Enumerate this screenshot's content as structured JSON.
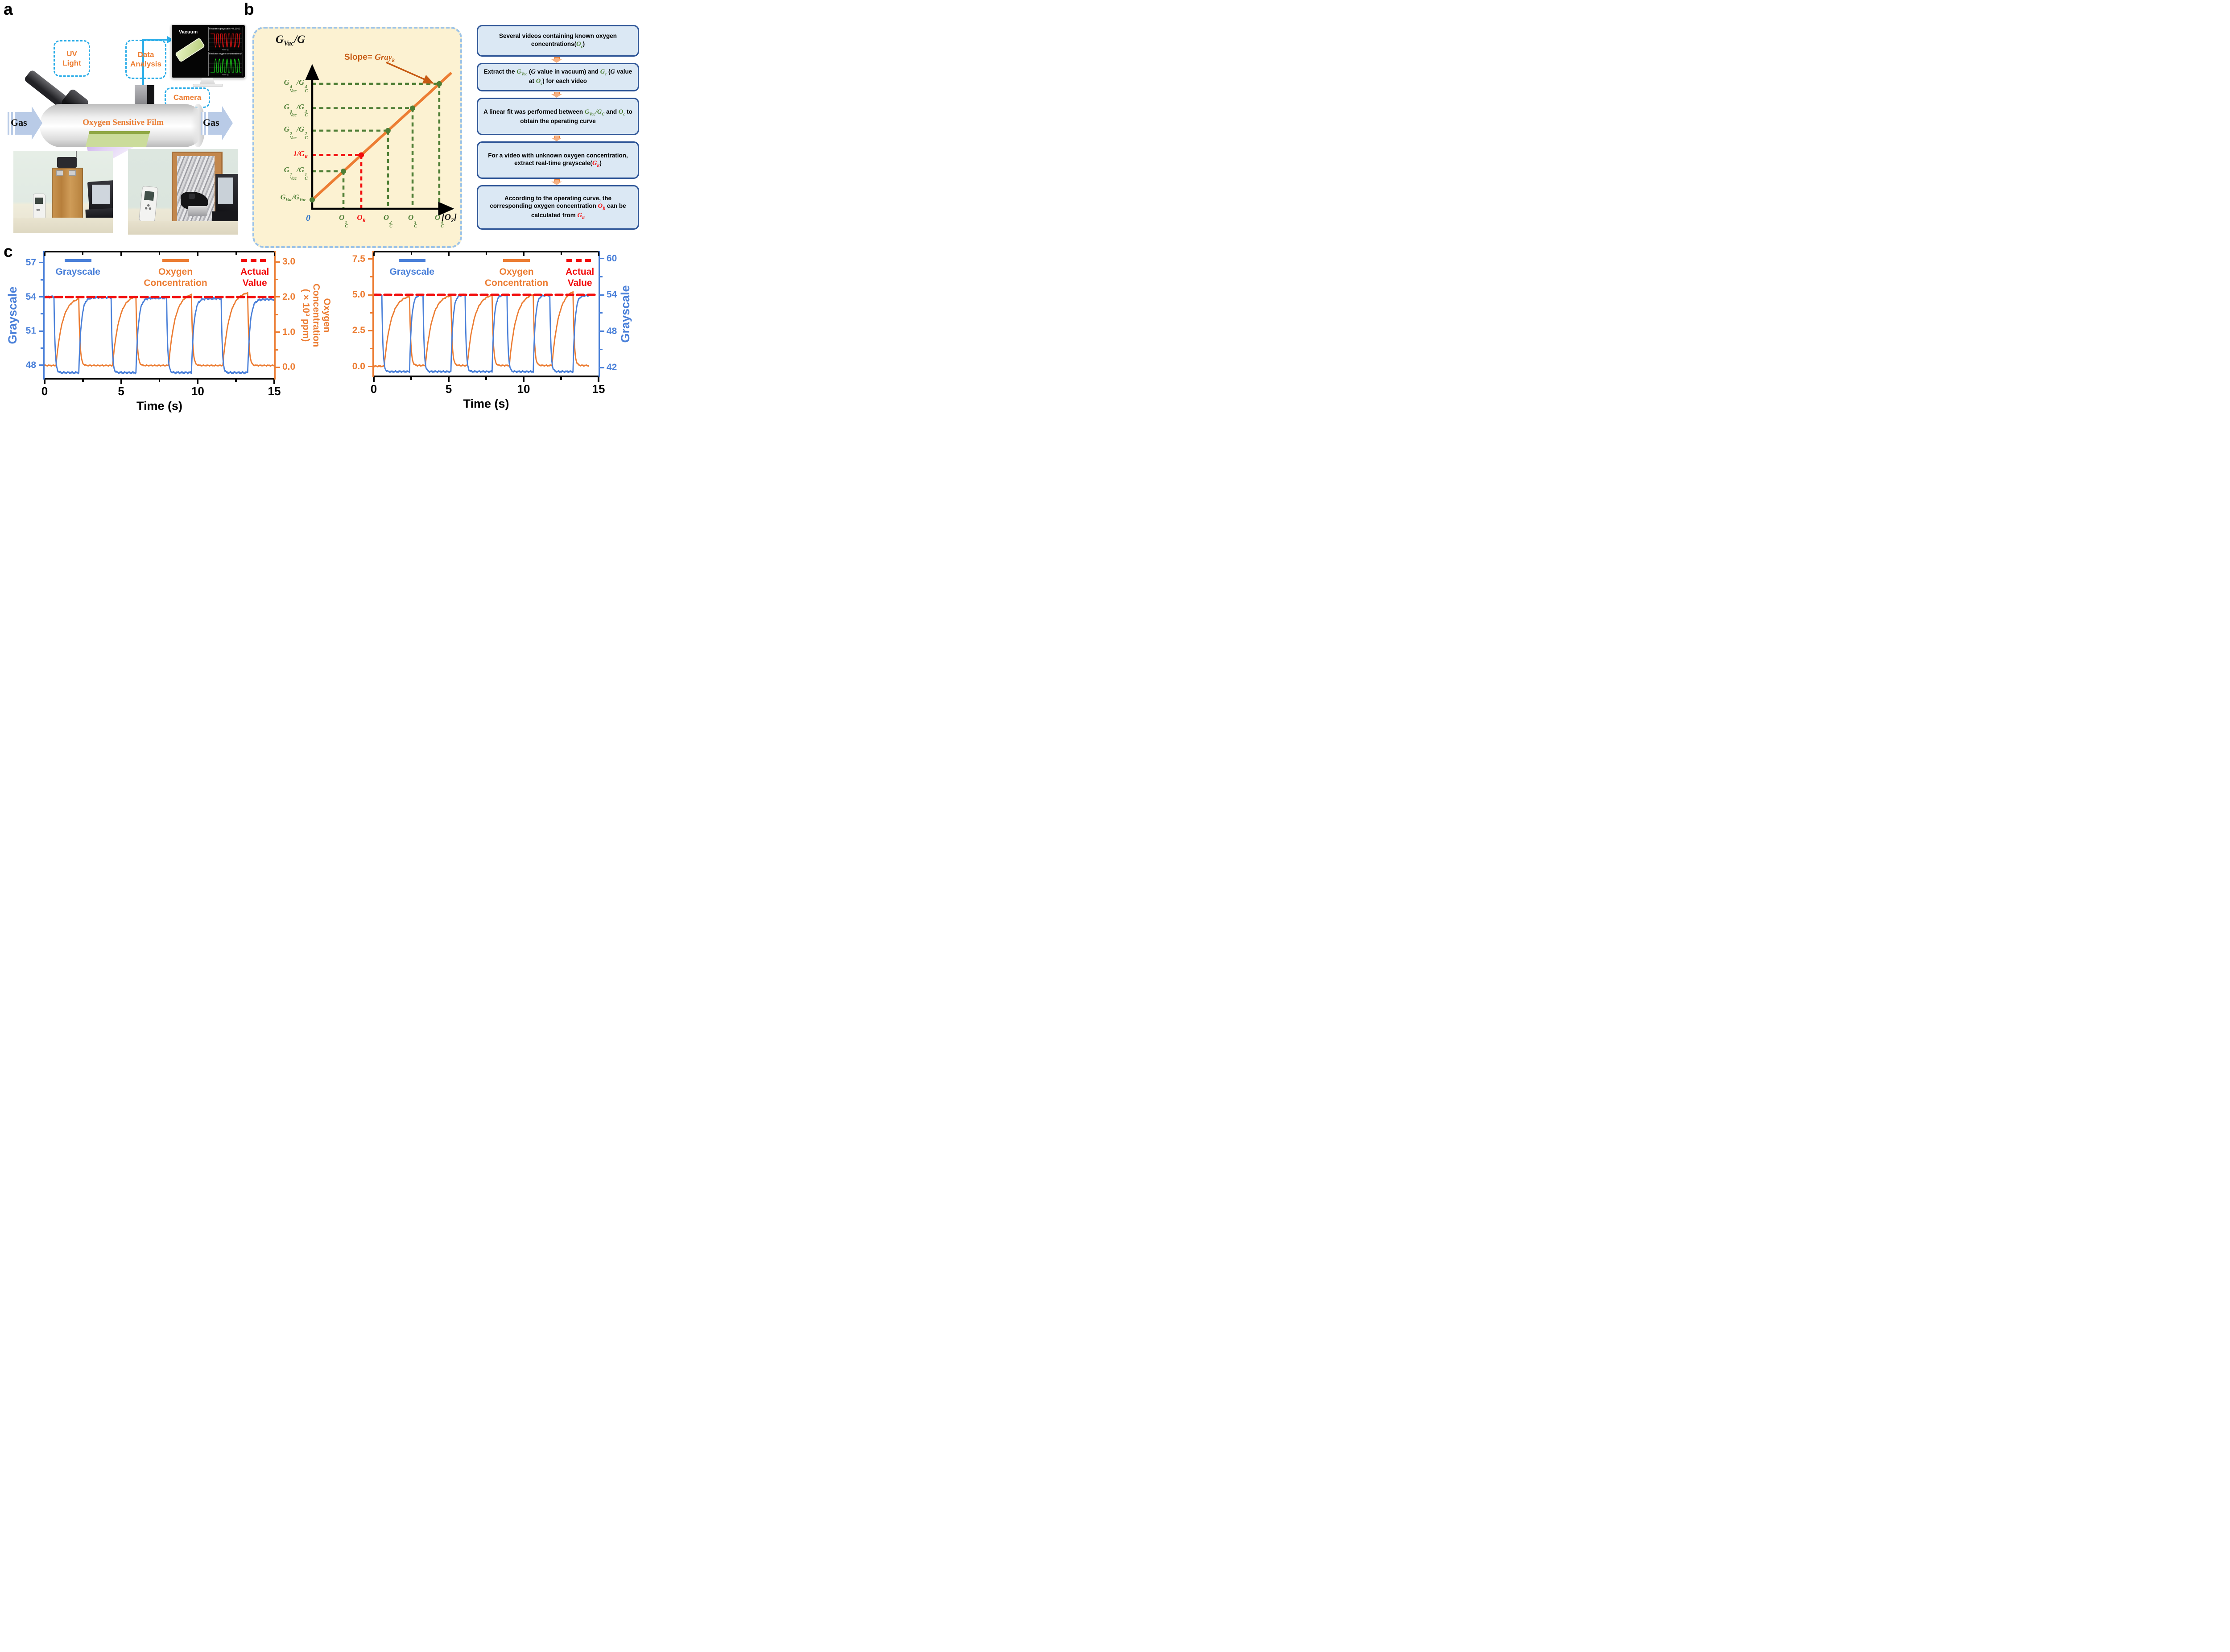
{
  "colors": {
    "blue": "#4a80d9",
    "orange": "#ec7d33",
    "red": "#f20d0d",
    "green": "#4e7e35",
    "slope_orange": "#c65911",
    "box_border": "#2e5597",
    "box_fill": "#dbe8f4",
    "beige": "#fcf2d2",
    "panel_dash": "#9cc3e8",
    "cyan_dash": "#2bade8",
    "gas_fill": "#b9cbe7"
  },
  "panel_a": {
    "letter": "a",
    "uv_light": [
      "UV",
      "Light"
    ],
    "data_analysis": [
      "Data",
      "Analysis"
    ],
    "camera_label": "Camera",
    "gas_left": "Gas",
    "gas_right": "Gas",
    "film_label": "Oxygen Sensitive Film",
    "monitor": {
      "screen_label": "Vacuum",
      "plot1_title": "Realtime grayscale: 47.1952",
      "plot2_title": "Realtime oxygen concentration (%): 0.0044543",
      "plot_xlabel": "Time (s)",
      "plot1_color": "#e01212",
      "plot2_color": "#17c417"
    }
  },
  "panel_b": {
    "letter": "b",
    "axis_title": "G_{Vac}/G",
    "slope_prefix": "Slope= ",
    "slope_math": "Gray_{k}",
    "x_axis_symbol": "[O_{2}]",
    "origin_label": "0",
    "origin_point_label": "G_{Vac}/G_{Vac}",
    "points": [
      {
        "f": 0.226,
        "ylabel": "G^{1}_{Vac}/G^{1}_{C}",
        "xlabel": "O^{1}_{C}",
        "color": "#4e7e35"
      },
      {
        "f": 0.355,
        "ylabel": "1/G_{R}",
        "xlabel": "O_{R}",
        "color": "#f20d0d"
      },
      {
        "f": 0.548,
        "ylabel": "G^{2}_{Vac}/G^{2}_{C}",
        "xlabel": "O^{2}_{C}",
        "color": "#4e7e35"
      },
      {
        "f": 0.726,
        "ylabel": "G^{3}_{Vac}/G^{3}_{C}",
        "xlabel": "O^{3}_{C}",
        "color": "#4e7e35"
      },
      {
        "f": 0.919,
        "ylabel": "G^{4}_{Vac}/G^{4}_{C}",
        "xlabel": "O^{4}_{C}",
        "color": "#4e7e35"
      }
    ],
    "flowchart": [
      {
        "seg": [
          {
            "t": "Several videos containing known oxygen concentrations("
          },
          {
            "m": "O_{c}",
            "c": "#4e7e35"
          },
          {
            "t": ")"
          }
        ]
      },
      {
        "seg": [
          {
            "t": "Extract the "
          },
          {
            "m": "G_{Vac}",
            "c": "#4e7e35"
          },
          {
            "t": " ("
          },
          {
            "m": "G",
            "c": "#000"
          },
          {
            "t": " value in vacuum) and "
          },
          {
            "m": "G_{c}",
            "c": "#4e7e35"
          },
          {
            "t": " ("
          },
          {
            "m": "G",
            "c": "#000"
          },
          {
            "t": " value at "
          },
          {
            "m": "O_{c}",
            "c": "#4e7e35"
          },
          {
            "t": ") for each video"
          }
        ]
      },
      {
        "seg": [
          {
            "t": "A linear fit was performed between "
          },
          {
            "m": "G_{Vac}/G_{C}",
            "c": "#4e7e35"
          },
          {
            "t": " and "
          },
          {
            "m": "O_{c}",
            "c": "#4e7e35"
          },
          {
            "t": " to obtain the operating curve"
          }
        ]
      },
      {
        "seg": [
          {
            "t": "For a video with unknown oxygen concentration, extract real-time grayscale("
          },
          {
            "m": "G_{R}",
            "c": "#f20d0d"
          },
          {
            "t": ")"
          }
        ]
      },
      {
        "seg": [
          {
            "t": "According to the operating curve, the corresponding oxygen concentration "
          },
          {
            "m": "O_{R}",
            "c": "#f20d0d"
          },
          {
            "t": " can be calculated from "
          },
          {
            "m": "G_{R}",
            "c": "#f20d0d"
          }
        ]
      }
    ]
  },
  "panel_c": {
    "letter": "c"
  },
  "chart_data": [
    {
      "type": "line",
      "position": "left",
      "xlabel": "Time (s)",
      "x_range": [
        0,
        15
      ],
      "x_ticks": [
        0,
        5,
        10,
        15
      ],
      "x_minor": [
        2.5,
        7.5,
        12.5
      ],
      "left_axis": {
        "label_lines": [
          "Grayscale"
        ],
        "color": "#4a80d9",
        "range": [
          46.9,
          57.9
        ],
        "ticks": [
          48,
          51,
          54,
          57
        ],
        "minor": [
          49.5,
          52.5,
          55.5
        ],
        "decimals": 0,
        "label_rotation": -90
      },
      "right_axis": {
        "label_lines": [
          "Oxygen",
          "Concentration",
          "( × 10³ ppm)"
        ],
        "color": "#ec7d33",
        "range": [
          -0.3,
          3.27
        ],
        "ticks": [
          0,
          1,
          2,
          3
        ],
        "minor": [
          0.5,
          1.5,
          2.5
        ],
        "decimals": 1,
        "label_rotation": 90
      },
      "reference": {
        "value": 2.0,
        "axis": "right",
        "color": "#f20d0d",
        "label": "Actual Value"
      },
      "legend": [
        {
          "lines": [
            "Grayscale"
          ],
          "color": "#4a80d9",
          "style": "solid",
          "cx": 0.145
        },
        {
          "lines": [
            "Oxygen",
            "Concentration"
          ],
          "color": "#ec7d33",
          "style": "solid",
          "cx": 0.57
        },
        {
          "lines": [
            "Actual",
            "Value"
          ],
          "color": "#f20d0d",
          "style": "dashed",
          "cx": 0.915
        }
      ],
      "t_end": 15,
      "sample_dt": 0.012,
      "series": [
        {
          "name": "Grayscale",
          "axis": "left",
          "color": "#4a80d9",
          "start_value": 54.0,
          "high": 54.0,
          "low": 47.35,
          "drops": [
            0.62,
            4.35,
            7.97,
            11.54
          ],
          "rises": [
            2.24,
            5.97,
            9.59,
            13.27
          ],
          "rise_values": [
            53.95,
            53.9,
            53.85,
            53.78
          ],
          "fall_tau": 0.07,
          "rise_tau": 0.16,
          "noise": 0.1,
          "seed": 3
        },
        {
          "name": "Oxygen Concentration",
          "axis": "right",
          "color": "#ec7d33",
          "start_value": 0.05,
          "high": 2.0,
          "low": 0.05,
          "rises": [
            0.75,
            4.45,
            8.1,
            11.65
          ],
          "falls": [
            2.24,
            5.97,
            9.59,
            13.27
          ],
          "rise_values": [
            2.0,
            2.07,
            2.13,
            2.16
          ],
          "rise_tau": 0.42,
          "fall_tau": 0.08,
          "noise": 0.018,
          "seed": 7
        }
      ]
    },
    {
      "type": "line",
      "position": "right",
      "xlabel": "Time (s)",
      "x_range": [
        0,
        15
      ],
      "x_ticks": [
        0,
        5,
        10,
        15
      ],
      "x_minor": [
        2.5,
        7.5,
        12.5
      ],
      "left_axis": {
        "label_lines": [],
        "color": "#ec7d33",
        "range": [
          -0.63,
          7.96
        ],
        "ticks": [
          0,
          2.5,
          5,
          7.5
        ],
        "minor": [
          1.25,
          3.75,
          6.25
        ],
        "decimals": 1,
        "label_rotation": -90
      },
      "right_axis": {
        "label_lines": [
          "Grayscale"
        ],
        "color": "#4a80d9",
        "range": [
          40.7,
          61.0
        ],
        "ticks": [
          42,
          48,
          54,
          60
        ],
        "minor": [
          45,
          51,
          57
        ],
        "decimals": 0,
        "label_rotation": -90
      },
      "reference": {
        "value": 5.0,
        "axis": "left",
        "color": "#f20d0d",
        "label": "Actual Value"
      },
      "legend": [
        {
          "lines": [
            "Grayscale"
          ],
          "color": "#4a80d9",
          "style": "solid",
          "cx": 0.17
        },
        {
          "lines": [
            "Oxygen",
            "Concentration"
          ],
          "color": "#ec7d33",
          "style": "solid",
          "cx": 0.635
        },
        {
          "lines": [
            "Actual",
            "Value"
          ],
          "color": "#f20d0d",
          "style": "dashed",
          "cx": 0.917
        }
      ],
      "t_end": 14.35,
      "sample_dt": 0.012,
      "series": [
        {
          "name": "Grayscale",
          "axis": "right",
          "color": "#4a80d9",
          "start_value": 54.0,
          "high": 54.0,
          "low": 41.35,
          "drops": [
            0.55,
            3.3,
            6.1,
            8.9,
            11.75
          ],
          "rises": [
            2.4,
            5.15,
            7.9,
            10.65,
            13.3
          ],
          "rise_values": [
            54,
            54,
            54,
            53.95,
            53.9
          ],
          "fall_tau": 0.07,
          "rise_tau": 0.13,
          "noise": 0.16,
          "seed": 11
        },
        {
          "name": "Oxygen Concentration",
          "axis": "left",
          "color": "#ec7d33",
          "start_value": 0.02,
          "high": 5.0,
          "low": 0.07,
          "rises": [
            0.7,
            3.45,
            6.25,
            9.05,
            11.9
          ],
          "falls": [
            2.4,
            5.15,
            7.9,
            10.65,
            13.3
          ],
          "rise_values": [
            5.0,
            5.06,
            5.1,
            5.16,
            5.45
          ],
          "rise_tau": 0.45,
          "fall_tau": 0.08,
          "noise": 0.05,
          "seed": 5
        }
      ]
    }
  ]
}
